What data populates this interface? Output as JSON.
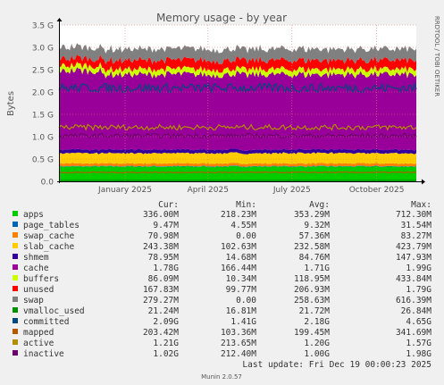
{
  "chart_data": {
    "type": "area",
    "title": "Memory usage - by year",
    "ylabel": "Bytes",
    "side_label": "RRDTOOL / TOBI OETIKER",
    "ylim": [
      0,
      3.5
    ],
    "y_ticks": [
      {
        "value": 0.0,
        "label": "0.0"
      },
      {
        "value": 0.5,
        "label": "0.5 G"
      },
      {
        "value": 1.0,
        "label": "1.0 G"
      },
      {
        "value": 1.5,
        "label": "1.5 G"
      },
      {
        "value": 2.0,
        "label": "2.0 G"
      },
      {
        "value": 2.5,
        "label": "2.5 G"
      },
      {
        "value": 3.0,
        "label": "3.0 G"
      },
      {
        "value": 3.5,
        "label": "3.5 G"
      }
    ],
    "x_ticks": [
      {
        "pos": 0.185,
        "label": "January 2025"
      },
      {
        "pos": 0.417,
        "label": "April 2025"
      },
      {
        "pos": 0.652,
        "label": "July 2025"
      },
      {
        "pos": 0.889,
        "label": "October 2025"
      }
    ],
    "columns": [
      "",
      "Cur:",
      "Min:",
      "Avg:",
      "Max:"
    ],
    "series": [
      {
        "name": "apps",
        "color": "#00cc00",
        "cur": "336.00M",
        "min": "218.23M",
        "avg": "353.29M",
        "max": "712.30M",
        "gb": 0.33
      },
      {
        "name": "page_tables",
        "color": "#0066b3",
        "cur": "9.47M",
        "min": "4.55M",
        "avg": "9.32M",
        "max": "31.54M",
        "gb": 0.01
      },
      {
        "name": "swap_cache",
        "color": "#ff8000",
        "cur": "70.98M",
        "min": "0.00",
        "avg": "57.36M",
        "max": "83.27M",
        "gb": 0.06
      },
      {
        "name": "slab_cache",
        "color": "#ffcc00",
        "cur": "243.38M",
        "min": "102.63M",
        "avg": "232.58M",
        "max": "423.79M",
        "gb": 0.23
      },
      {
        "name": "shmem",
        "color": "#330099",
        "cur": "78.95M",
        "min": "14.68M",
        "avg": "84.76M",
        "max": "147.93M",
        "gb": 0.08
      },
      {
        "name": "cache",
        "color": "#990099",
        "cur": "1.78G",
        "min": "166.44M",
        "avg": "1.71G",
        "max": "1.99G",
        "gb": 1.68
      },
      {
        "name": "buffers",
        "color": "#ccff00",
        "cur": "86.09M",
        "min": "10.34M",
        "avg": "118.95M",
        "max": "433.84M",
        "gb": 0.12
      },
      {
        "name": "unused",
        "color": "#ff0000",
        "cur": "167.83M",
        "min": "99.77M",
        "avg": "206.93M",
        "max": "1.79G",
        "gb": 0.2
      },
      {
        "name": "swap",
        "color": "#808080",
        "cur": "279.27M",
        "min": "0.00",
        "avg": "258.63M",
        "max": "616.39M",
        "gb": 0.25
      },
      {
        "name": "vmalloc_used",
        "color": "#008f00",
        "cur": "21.24M",
        "min": "16.81M",
        "avg": "21.72M",
        "max": "26.84M",
        "gb": 0.02
      },
      {
        "name": "committed",
        "color": "#00487d",
        "cur": "2.09G",
        "min": "1.41G",
        "avg": "2.18G",
        "max": "4.65G",
        "gb": 2.09
      },
      {
        "name": "mapped",
        "color": "#b35a00",
        "cur": "203.42M",
        "min": "103.36M",
        "avg": "199.45M",
        "max": "341.69M",
        "gb": 0.2
      },
      {
        "name": "active",
        "color": "#b38f00",
        "cur": "1.21G",
        "min": "213.65M",
        "avg": "1.20G",
        "max": "1.57G",
        "gb": 1.21
      },
      {
        "name": "inactive",
        "color": "#6b006b",
        "cur": "1.02G",
        "min": "212.40M",
        "avg": "1.00G",
        "max": "1.98G",
        "gb": 1.02
      }
    ],
    "stack_order": [
      "apps",
      "page_tables",
      "swap_cache",
      "slab_cache",
      "shmem",
      "cache",
      "buffers",
      "unused",
      "swap"
    ],
    "line_order": [
      "vmalloc_used",
      "committed",
      "mapped",
      "active",
      "inactive"
    ]
  },
  "footer": {
    "last_update": "Last update: Fri Dec 19 00:00:23 2025",
    "munin_version": "Munin 2.0.57"
  }
}
